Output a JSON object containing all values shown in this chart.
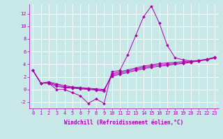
{
  "xlabel": "Windchill (Refroidissement éolien,°C)",
  "bg_color": "#c8e8e8",
  "line_color": "#aa00aa",
  "grid_color": "#ffffff",
  "xlim": [
    -0.5,
    23.5
  ],
  "ylim": [
    -3.0,
    13.5
  ],
  "yticks": [
    -2,
    0,
    2,
    4,
    6,
    8,
    10,
    12
  ],
  "xticks": [
    0,
    1,
    2,
    3,
    4,
    5,
    6,
    7,
    8,
    9,
    10,
    11,
    12,
    13,
    14,
    15,
    16,
    17,
    18,
    19,
    20,
    21,
    22,
    23
  ],
  "tick_fontsize": 5.0,
  "xlabel_fontsize": 5.5,
  "series": [
    [
      3,
      1,
      1,
      0,
      0,
      -0.5,
      -1,
      -2.2,
      -1.5,
      -2.2,
      2.8,
      3.0,
      5.5,
      8.5,
      11.5,
      13.2,
      10.5,
      7.0,
      5.0,
      4.7,
      4.5,
      4.5,
      4.8,
      5.1
    ],
    [
      3,
      1,
      1,
      0.5,
      0.3,
      0.2,
      0.1,
      0.0,
      -0.1,
      -0.3,
      2.5,
      2.8,
      3.1,
      3.4,
      3.7,
      3.9,
      4.1,
      4.2,
      4.3,
      4.4,
      4.5,
      4.6,
      4.8,
      5.0
    ],
    [
      3,
      1,
      1.1,
      0.7,
      0.4,
      0.3,
      0.2,
      0.1,
      0.0,
      -0.1,
      2.3,
      2.6,
      2.9,
      3.2,
      3.5,
      3.7,
      3.9,
      4.0,
      4.1,
      4.2,
      4.4,
      4.6,
      4.7,
      5.0
    ],
    [
      3,
      1,
      1.2,
      0.9,
      0.6,
      0.4,
      0.3,
      0.2,
      0.1,
      0.0,
      2.1,
      2.4,
      2.7,
      3.0,
      3.3,
      3.5,
      3.7,
      3.8,
      4.0,
      4.1,
      4.3,
      4.5,
      4.7,
      5.0
    ]
  ]
}
